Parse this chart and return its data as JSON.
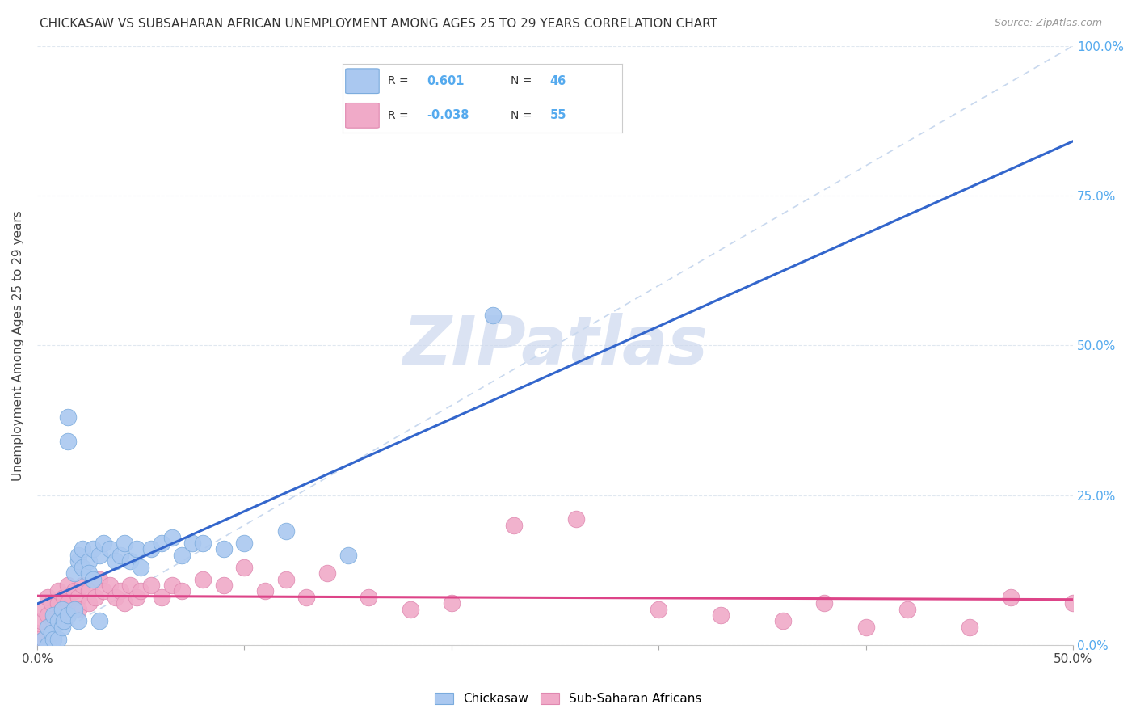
{
  "title": "CHICKASAW VS SUBSAHARAN AFRICAN UNEMPLOYMENT AMONG AGES 25 TO 29 YEARS CORRELATION CHART",
  "source": "Source: ZipAtlas.com",
  "ylabel": "Unemployment Among Ages 25 to 29 years",
  "xlim": [
    0.0,
    0.5
  ],
  "ylim": [
    0.0,
    1.0
  ],
  "xtick_positions": [
    0.0,
    0.1,
    0.2,
    0.3,
    0.4,
    0.5
  ],
  "xtick_labels": [
    "0.0%",
    "",
    "",
    "",
    "",
    "50.0%"
  ],
  "ytick_positions": [
    0.0,
    0.25,
    0.5,
    0.75,
    1.0
  ],
  "ytick_labels_right": [
    "0.0%",
    "25.0%",
    "50.0%",
    "75.0%",
    "100.0%"
  ],
  "chickasaw_R": 0.601,
  "chickasaw_N": 46,
  "subsaharan_R": -0.038,
  "subsaharan_N": 55,
  "chickasaw_color": "#aac8f0",
  "subsaharan_color": "#f0aac8",
  "chickasaw_line_color": "#3366cc",
  "subsaharan_line_color": "#dd4488",
  "diag_line_color": "#c8d8ee",
  "background_color": "#ffffff",
  "grid_color": "#e0e8f0",
  "watermark_text": "ZIPatlas",
  "watermark_color": "#cdd8ee",
  "legend_border_color": "#cccccc",
  "chickasaw_scatter_x": [
    0.003,
    0.005,
    0.005,
    0.007,
    0.008,
    0.008,
    0.01,
    0.01,
    0.012,
    0.012,
    0.013,
    0.015,
    0.015,
    0.015,
    0.018,
    0.018,
    0.02,
    0.02,
    0.02,
    0.022,
    0.022,
    0.025,
    0.025,
    0.027,
    0.027,
    0.03,
    0.03,
    0.032,
    0.035,
    0.038,
    0.04,
    0.042,
    0.045,
    0.048,
    0.05,
    0.055,
    0.06,
    0.065,
    0.07,
    0.075,
    0.08,
    0.09,
    0.1,
    0.12,
    0.15,
    0.22
  ],
  "chickasaw_scatter_y": [
    0.01,
    0.03,
    0.0,
    0.02,
    0.05,
    0.01,
    0.04,
    0.01,
    0.06,
    0.03,
    0.04,
    0.38,
    0.34,
    0.05,
    0.12,
    0.06,
    0.14,
    0.15,
    0.04,
    0.16,
    0.13,
    0.14,
    0.12,
    0.16,
    0.11,
    0.15,
    0.04,
    0.17,
    0.16,
    0.14,
    0.15,
    0.17,
    0.14,
    0.16,
    0.13,
    0.16,
    0.17,
    0.18,
    0.15,
    0.17,
    0.17,
    0.16,
    0.17,
    0.19,
    0.15,
    0.55
  ],
  "subsaharan_scatter_x": [
    0.0,
    0.0,
    0.002,
    0.003,
    0.005,
    0.005,
    0.007,
    0.008,
    0.01,
    0.01,
    0.012,
    0.013,
    0.015,
    0.015,
    0.018,
    0.02,
    0.02,
    0.022,
    0.025,
    0.025,
    0.028,
    0.03,
    0.032,
    0.035,
    0.038,
    0.04,
    0.042,
    0.045,
    0.048,
    0.05,
    0.055,
    0.06,
    0.065,
    0.07,
    0.08,
    0.09,
    0.1,
    0.11,
    0.12,
    0.13,
    0.14,
    0.16,
    0.18,
    0.2,
    0.23,
    0.26,
    0.3,
    0.33,
    0.36,
    0.38,
    0.4,
    0.42,
    0.45,
    0.47,
    0.5
  ],
  "subsaharan_scatter_y": [
    0.02,
    0.01,
    0.04,
    0.06,
    0.08,
    0.05,
    0.07,
    0.04,
    0.07,
    0.09,
    0.06,
    0.08,
    0.1,
    0.07,
    0.09,
    0.08,
    0.06,
    0.1,
    0.09,
    0.07,
    0.08,
    0.11,
    0.09,
    0.1,
    0.08,
    0.09,
    0.07,
    0.1,
    0.08,
    0.09,
    0.1,
    0.08,
    0.1,
    0.09,
    0.11,
    0.1,
    0.13,
    0.09,
    0.11,
    0.08,
    0.12,
    0.08,
    0.06,
    0.07,
    0.2,
    0.21,
    0.06,
    0.05,
    0.04,
    0.07,
    0.03,
    0.06,
    0.03,
    0.08,
    0.07
  ]
}
